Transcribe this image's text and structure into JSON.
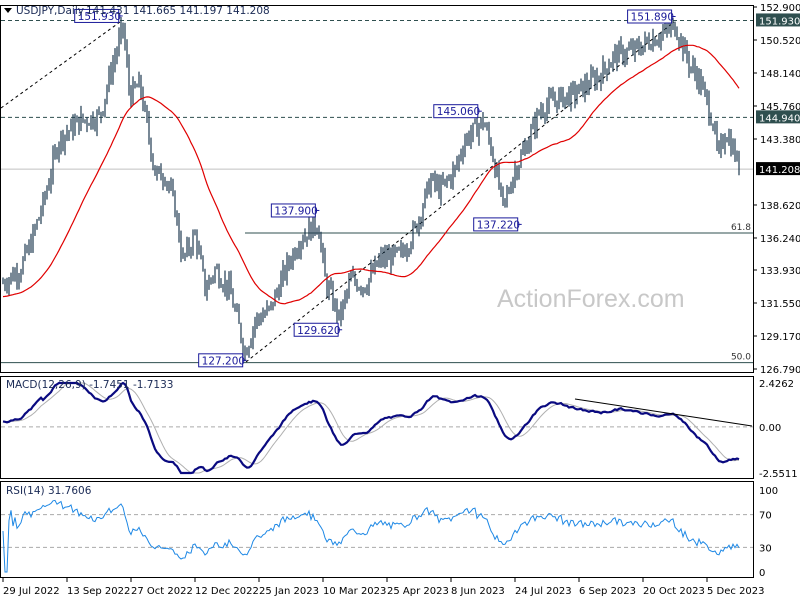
{
  "header": {
    "symbol_timeframe": "USDJPY,Daily",
    "ohlc": "141.431 141.665 141.197 141.208"
  },
  "watermark": "ActionForex.com",
  "colors": {
    "bars": "#1e3a50",
    "ma": "#e00000",
    "macd": "#0a0a80",
    "signal": "#b0b0b0",
    "rsi": "#1e88e5",
    "label_box": "#1a1a9a",
    "highlight_bg": "#2f4f4f",
    "current_bg": "#000000"
  },
  "chart_data": [
    {
      "type": "ohlc",
      "title": "USDJPY,Daily",
      "ylim": [
        126.79,
        152.9
      ],
      "y_ticks": [
        "152.900",
        "150.520",
        "148.140",
        "145.760",
        "143.380",
        "138.620",
        "136.240",
        "133.930",
        "131.550",
        "129.170",
        "126.790"
      ],
      "highlighted_levels": [
        {
          "label": "151.930",
          "value": 151.93,
          "style": "dashed"
        },
        {
          "label": "144.940",
          "value": 144.94,
          "style": "dashed"
        },
        {
          "label": "141.208",
          "value": 141.208,
          "style": "current"
        }
      ],
      "fib_levels": [
        {
          "label": "61.8",
          "value": 136.6
        },
        {
          "label": "50.0",
          "value": 127.25
        }
      ],
      "swing_labels": [
        {
          "text": "151.930",
          "date": "2022-10-21",
          "value": 151.93
        },
        {
          "text": "127.200",
          "date": "2023-01-16",
          "value": 127.2
        },
        {
          "text": "137.900",
          "date": "2023-03-08",
          "value": 137.9
        },
        {
          "text": "129.620",
          "date": "2023-03-24",
          "value": 129.62
        },
        {
          "text": "145.060",
          "date": "2023-06-30",
          "value": 145.06
        },
        {
          "text": "137.220",
          "date": "2023-07-28",
          "value": 137.22
        },
        {
          "text": "151.890",
          "date": "2023-11-13",
          "value": 151.89
        }
      ],
      "x_ticks": [
        "29 Jul 2022",
        "13 Sep 2022",
        "27 Oct 2022",
        "12 Dec 2022",
        "25 Jan 2023",
        "10 Mar 2023",
        "25 Apr 2023",
        "8 Jun 2023",
        "24 Jul 2023",
        "6 Sep 2023",
        "20 Oct 2023",
        "5 Dec 2023"
      ],
      "close_path": [
        [
          "2022-07-29",
          133.0
        ],
        [
          "2022-08-10",
          134.0
        ],
        [
          "2022-08-17",
          135.7
        ],
        [
          "2022-08-27",
          139.0
        ],
        [
          "2022-09-06",
          143.3
        ],
        [
          "2022-09-21",
          144.7
        ],
        [
          "2022-10-05",
          145.0
        ],
        [
          "2022-10-12",
          148.0
        ],
        [
          "2022-10-18",
          150.2
        ],
        [
          "2022-10-21",
          151.6
        ],
        [
          "2022-10-26",
          146.5
        ],
        [
          "2022-11-02",
          147.3
        ],
        [
          "2022-11-13",
          140.8
        ],
        [
          "2022-11-20",
          140.8
        ],
        [
          "2022-11-27",
          138.3
        ],
        [
          "2022-12-02",
          134.6
        ],
        [
          "2022-12-11",
          136.5
        ],
        [
          "2022-12-18",
          132.5
        ],
        [
          "2022-12-25",
          134.0
        ],
        [
          "2023-01-04",
          132.5
        ],
        [
          "2023-01-15",
          128.0
        ],
        [
          "2023-01-22",
          130.3
        ],
        [
          "2023-02-01",
          131.0
        ],
        [
          "2023-02-15",
          134.6
        ],
        [
          "2023-02-22",
          136.1
        ],
        [
          "2023-03-07",
          137.4
        ],
        [
          "2023-03-12",
          133.2
        ],
        [
          "2023-03-22",
          130.4
        ],
        [
          "2023-03-30",
          133.2
        ],
        [
          "2023-04-09",
          132.8
        ],
        [
          "2023-04-20",
          134.7
        ],
        [
          "2023-05-04",
          135.0
        ],
        [
          "2023-05-14",
          136.8
        ],
        [
          "2023-05-25",
          140.4
        ],
        [
          "2023-06-01",
          139.7
        ],
        [
          "2023-06-11",
          141.1
        ],
        [
          "2023-06-18",
          143.3
        ],
        [
          "2023-07-01",
          144.7
        ],
        [
          "2023-07-07",
          142.6
        ],
        [
          "2023-07-15",
          138.4
        ],
        [
          "2023-07-23",
          141.1
        ],
        [
          "2023-07-30",
          142.6
        ],
        [
          "2023-08-10",
          145.5
        ],
        [
          "2023-08-20",
          146.2
        ],
        [
          "2023-09-03",
          146.6
        ],
        [
          "2023-09-21",
          148.0
        ],
        [
          "2023-10-01",
          149.4
        ],
        [
          "2023-10-16",
          149.8
        ],
        [
          "2023-10-26",
          150.5
        ],
        [
          "2023-11-13",
          151.5
        ],
        [
          "2023-11-23",
          148.7
        ],
        [
          "2023-11-30",
          147.6
        ],
        [
          "2023-12-09",
          144.7
        ],
        [
          "2023-12-13",
          141.9
        ],
        [
          "2023-12-18",
          144.0
        ],
        [
          "2023-12-25",
          142.2
        ],
        [
          "2023-12-28",
          141.2
        ]
      ],
      "moving_average": {
        "color": "red"
      }
    },
    {
      "type": "line",
      "title": "MACD(12,26,9) -1.7451 -1.7133",
      "ylim": [
        -2.5511,
        2.4262
      ],
      "y_ticks": [
        "2.4262",
        "0.00",
        "-2.5511"
      ],
      "series": [
        {
          "name": "MACD",
          "last": -1.7451
        },
        {
          "name": "Signal",
          "last": -1.7133
        }
      ]
    },
    {
      "type": "line",
      "title": "RSI(14) 31.7606",
      "ylim": [
        0,
        100
      ],
      "y_ticks": [
        "100",
        "70",
        "30",
        "0"
      ],
      "levels": [
        70,
        30
      ],
      "series": [
        {
          "name": "RSI",
          "last": 31.7606
        }
      ]
    }
  ]
}
